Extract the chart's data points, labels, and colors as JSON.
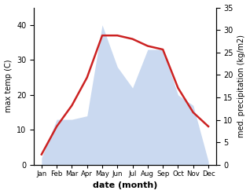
{
  "months": [
    "Jan",
    "Feb",
    "Mar",
    "Apr",
    "May",
    "Jun",
    "Jul",
    "Aug",
    "Sep",
    "Oct",
    "Nov",
    "Dec"
  ],
  "month_x": [
    1,
    2,
    3,
    4,
    5,
    6,
    7,
    8,
    9,
    10,
    11,
    12
  ],
  "max_temp": [
    3,
    11,
    17,
    25,
    37,
    37,
    36,
    34,
    33,
    22,
    15,
    11
  ],
  "precipitation": [
    2,
    13,
    13,
    14,
    40,
    28,
    22,
    33,
    33,
    20,
    17,
    1
  ],
  "temp_ylim": [
    0,
    45
  ],
  "precip_ylim": [
    0,
    35
  ],
  "temp_yticks": [
    0,
    10,
    20,
    30,
    40
  ],
  "precip_yticks": [
    0,
    5,
    10,
    15,
    20,
    25,
    30,
    35
  ],
  "fill_color": "#aec6e8",
  "fill_alpha": 0.65,
  "line_color": "#cc2222",
  "line_width": 1.8,
  "xlabel": "date (month)",
  "ylabel_left": "max temp (C)",
  "ylabel_right": "med. precipitation (kg/m2)",
  "bg_color": "#ffffff"
}
